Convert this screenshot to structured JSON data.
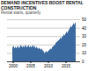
{
  "chart_data": {
    "type": "bar",
    "title": "DEMAND INCENTIVES BOOST RENTAL CONSTRUCTION",
    "subtitle": "Rental starts, quarterly",
    "categories": [
      "2000",
      null,
      null,
      null,
      null,
      null,
      null,
      null,
      null,
      null,
      null,
      null,
      null,
      null,
      null,
      null,
      null,
      null,
      null,
      null,
      "2005",
      null,
      null,
      null,
      null,
      null,
      null,
      null,
      null,
      null,
      null,
      null,
      null,
      null,
      null,
      null,
      null,
      null,
      null,
      null,
      "2010",
      null,
      null,
      null,
      null,
      null,
      null,
      null,
      null,
      null,
      null,
      null,
      null,
      null,
      null,
      null,
      null,
      null,
      null,
      null,
      "2015",
      null,
      null,
      null,
      null,
      null,
      null,
      null,
      null,
      null,
      null,
      null
    ],
    "values": [
      17,
      18,
      16,
      17,
      16,
      17,
      18,
      16,
      17,
      19,
      18,
      17,
      18,
      17,
      19,
      18,
      17,
      18,
      19,
      17,
      18,
      17,
      18,
      19,
      17,
      18,
      16,
      17,
      16,
      15,
      16,
      15,
      14,
      15,
      13,
      12,
      10,
      11,
      12,
      11,
      12,
      13,
      14,
      15,
      15,
      17,
      18,
      19,
      20,
      22,
      23,
      24,
      25,
      26,
      28,
      27,
      29,
      30,
      32,
      31,
      33,
      35,
      34,
      36,
      38,
      40,
      42,
      41,
      43,
      45,
      44,
      46
    ],
    "color": "#3b6aa0",
    "ylim": [
      0,
      50
    ],
    "yticks": [
      0,
      10,
      20,
      30,
      40,
      50
    ],
    "grid": true
  }
}
